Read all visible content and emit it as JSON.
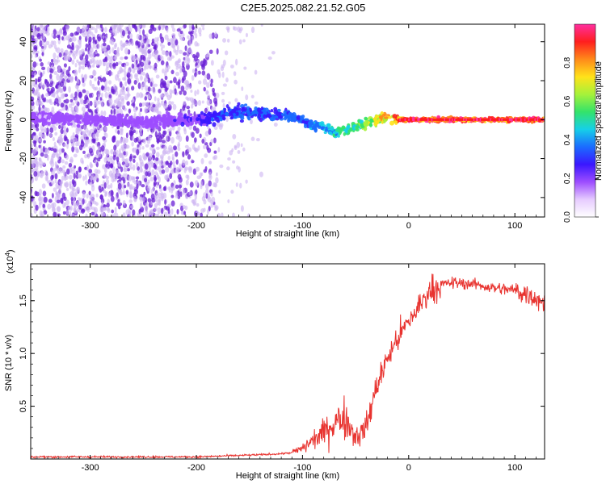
{
  "title": "C2E5.2025.082.21.52.G05",
  "colors": {
    "snr_line": "#e8332f",
    "scatter_core": "#6a1fd6",
    "scatter_halo": "#cdb4f2",
    "colormap": [
      "#ffffff",
      "#e6cbff",
      "#9d4dff",
      "#3a17ff",
      "#1b6bff",
      "#16d0e8",
      "#34e36a",
      "#a6f23a",
      "#ffe21a",
      "#ff8a1a",
      "#ff1e1e",
      "#ff2fa0"
    ]
  },
  "chart_data": [
    {
      "type": "heatmap",
      "xlabel": "Height of straight line (km)",
      "ylabel": "Frequency (Hz)",
      "xlim": [
        -356,
        128
      ],
      "ylim": [
        -50,
        49
      ],
      "xticks": [
        -300,
        -200,
        -100,
        0,
        100
      ],
      "yticks": [
        -40,
        -20,
        0,
        20,
        40
      ],
      "colorbar": {
        "label": "Normalized spectral amplitude",
        "range": [
          0.0,
          1.0
        ],
        "ticks": [
          "0.0",
          "0.2",
          "0.4",
          "0.6",
          "0.8"
        ]
      },
      "ridge": {
        "x": [
          -350,
          -300,
          -250,
          -200,
          -180,
          -160,
          -140,
          -120,
          -100,
          -90,
          -80,
          -70,
          -60,
          -50,
          -40,
          -30,
          -20,
          -10,
          0,
          50,
          100,
          128
        ],
        "frequency": [
          1,
          0,
          -1,
          0,
          2,
          4,
          3,
          2,
          0,
          -3,
          -4,
          -6,
          -5,
          -4,
          -2,
          0,
          1,
          0,
          0,
          0,
          0,
          0
        ],
        "amplitude": [
          0.12,
          0.12,
          0.15,
          0.2,
          0.3,
          0.33,
          0.33,
          0.35,
          0.35,
          0.4,
          0.45,
          0.5,
          0.52,
          0.58,
          0.62,
          0.7,
          0.8,
          0.88,
          0.95,
          0.97,
          0.97,
          0.97
        ]
      },
      "noise_extent_x": [
        -356,
        -120
      ]
    },
    {
      "type": "line",
      "xlabel": "Height of straight line (km)",
      "ylabel": "SNR (10 * v/v)",
      "multiplier": "(x10",
      "multiplier_exp": "4",
      "multiplier_close": ")",
      "xlim": [
        -356,
        128
      ],
      "ylim": [
        0,
        1.85
      ],
      "xticks": [
        -300,
        -200,
        -100,
        0,
        100
      ],
      "yticks": [
        "0.5",
        "1.0",
        "1.5"
      ],
      "series": [
        {
          "x": [
            -356,
            -300,
            -250,
            -200,
            -170,
            -140,
            -120,
            -110,
            -100,
            -90,
            -80,
            -70,
            -60,
            -55,
            -50,
            -45,
            -40,
            -35,
            -30,
            -20,
            -10,
            0,
            10,
            20,
            30,
            40,
            60,
            80,
            100,
            115,
            125,
            128
          ],
          "values": [
            0.02,
            0.02,
            0.02,
            0.02,
            0.03,
            0.04,
            0.05,
            0.06,
            0.1,
            0.18,
            0.25,
            0.35,
            0.4,
            0.3,
            0.22,
            0.25,
            0.3,
            0.5,
            0.7,
            0.95,
            1.15,
            1.3,
            1.45,
            1.6,
            1.65,
            1.67,
            1.66,
            1.62,
            1.6,
            1.55,
            1.5,
            1.48
          ]
        }
      ]
    }
  ]
}
